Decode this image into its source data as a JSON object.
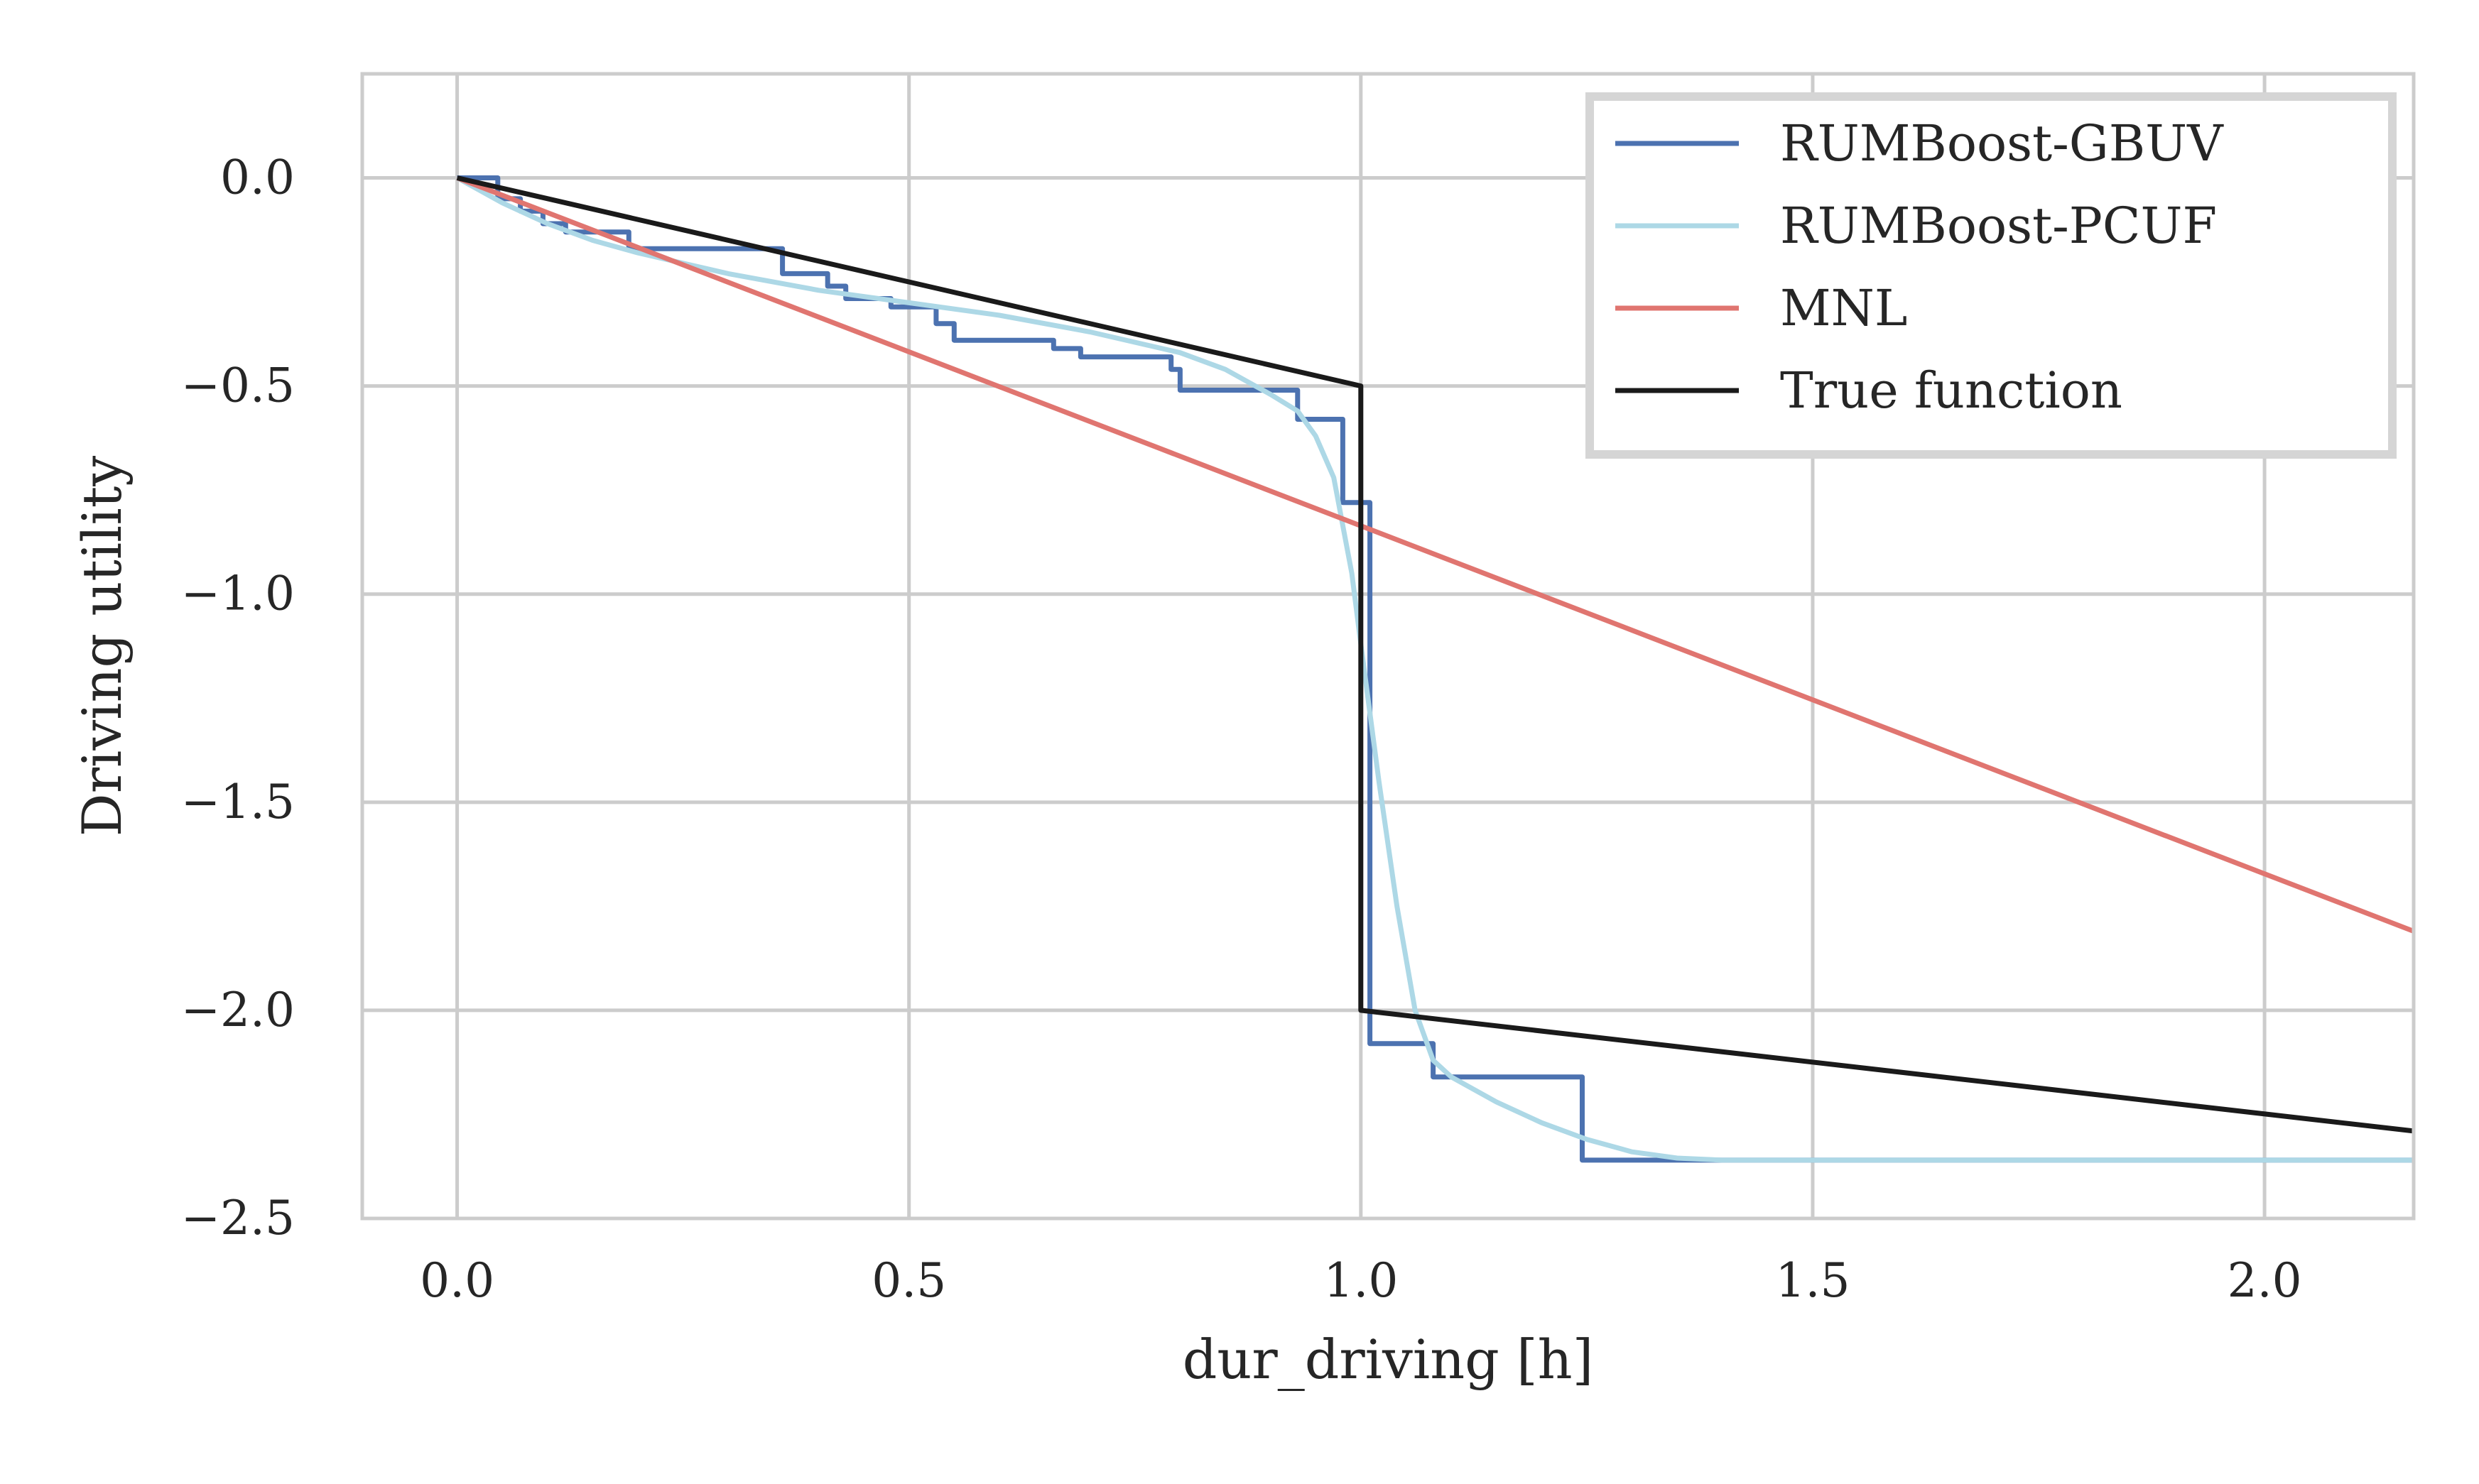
{
  "chart_data": {
    "type": "line",
    "title": "",
    "xlabel": "dur_driving [h]",
    "ylabel": "Driving utility",
    "xlim": [
      -0.105,
      2.165
    ],
    "ylim": [
      -2.5,
      0.25
    ],
    "xticks": [
      0.0,
      0.5,
      1.0,
      1.5,
      2.0
    ],
    "xtick_labels": [
      "0.0",
      "0.5",
      "1.0",
      "1.5",
      "2.0"
    ],
    "yticks": [
      0.0,
      -0.5,
      -1.0,
      -1.5,
      -2.0,
      -2.5
    ],
    "ytick_labels": [
      "0.0",
      "−0.5",
      "−1.0",
      "−1.5",
      "−2.0",
      "−2.5"
    ],
    "grid": true,
    "legend_position": "top-right",
    "series": [
      {
        "name": "RUMBoost-GBUV",
        "color": "#4c72b0",
        "style": "step",
        "x": [
          0.0,
          0.045,
          0.045,
          0.07,
          0.07,
          0.095,
          0.095,
          0.12,
          0.12,
          0.19,
          0.19,
          0.36,
          0.36,
          0.41,
          0.41,
          0.43,
          0.43,
          0.48,
          0.48,
          0.53,
          0.53,
          0.55,
          0.55,
          0.66,
          0.66,
          0.69,
          0.69,
          0.79,
          0.79,
          0.8,
          0.8,
          0.93,
          0.93,
          0.98,
          0.98,
          1.01,
          1.01,
          1.08,
          1.08,
          1.245,
          1.245,
          2.165
        ],
        "y": [
          0.0,
          0.0,
          -0.05,
          -0.05,
          -0.08,
          -0.08,
          -0.11,
          -0.11,
          -0.13,
          -0.13,
          -0.17,
          -0.17,
          -0.23,
          -0.23,
          -0.26,
          -0.26,
          -0.29,
          -0.29,
          -0.31,
          -0.31,
          -0.35,
          -0.35,
          -0.39,
          -0.39,
          -0.41,
          -0.41,
          -0.43,
          -0.43,
          -0.46,
          -0.46,
          -0.51,
          -0.51,
          -0.58,
          -0.58,
          -0.78,
          -0.78,
          -2.08,
          -2.08,
          -2.16,
          -2.16,
          -2.36,
          -2.36
        ]
      },
      {
        "name": "RUMBoost-PCUF",
        "color": "#add8e6",
        "style": "line",
        "x": [
          0.0,
          0.05,
          0.1,
          0.15,
          0.2,
          0.3,
          0.4,
          0.5,
          0.6,
          0.7,
          0.8,
          0.85,
          0.9,
          0.93,
          0.95,
          0.97,
          0.99,
          1.0,
          1.02,
          1.04,
          1.06,
          1.08,
          1.1,
          1.15,
          1.2,
          1.25,
          1.3,
          1.35,
          1.4,
          1.5,
          2.165
        ],
        "y": [
          0.0,
          -0.06,
          -0.11,
          -0.15,
          -0.18,
          -0.23,
          -0.27,
          -0.3,
          -0.33,
          -0.37,
          -0.42,
          -0.46,
          -0.52,
          -0.56,
          -0.62,
          -0.72,
          -0.95,
          -1.12,
          -1.45,
          -1.75,
          -2.0,
          -2.12,
          -2.16,
          -2.22,
          -2.27,
          -2.31,
          -2.34,
          -2.355,
          -2.36,
          -2.36,
          -2.36
        ]
      },
      {
        "name": "MNL",
        "color": "#e07570",
        "style": "line",
        "x": [
          0.0,
          2.165
        ],
        "y": [
          0.0,
          -1.81
        ]
      },
      {
        "name": "True function",
        "color": "#1a1a1a",
        "style": "line",
        "x": [
          0.0,
          1.0,
          1.0,
          2.165
        ],
        "y": [
          0.0,
          -0.5,
          -2.0,
          -2.29
        ]
      }
    ]
  }
}
